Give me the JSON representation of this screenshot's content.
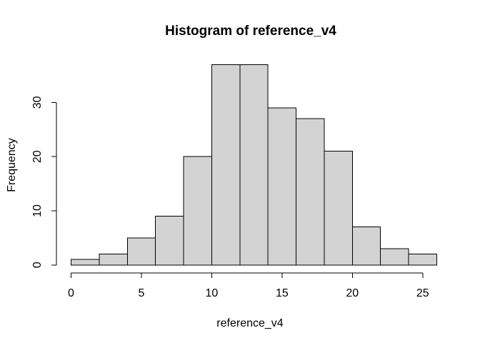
{
  "chart_data": {
    "type": "bar",
    "subtype": "histogram",
    "title": "Histogram of reference_v4",
    "xlabel": "reference_v4",
    "ylabel": "Frequency",
    "breaks": [
      0,
      2,
      4,
      6,
      8,
      10,
      12,
      14,
      16,
      18,
      20,
      22,
      24,
      26
    ],
    "counts": [
      1,
      2,
      5,
      9,
      20,
      37,
      37,
      29,
      27,
      21,
      7,
      3,
      2
    ],
    "x_ticks": [
      0,
      5,
      10,
      15,
      20,
      25
    ],
    "y_ticks": [
      0,
      10,
      20,
      30
    ],
    "xlim": [
      0,
      26
    ],
    "ylim": [
      0,
      37
    ],
    "grid": false,
    "legend": null,
    "colors": {
      "bar_fill": "#d3d3d3",
      "bar_stroke": "#000000",
      "axis": "#000000",
      "text": "#000000",
      "background": "#ffffff"
    }
  }
}
